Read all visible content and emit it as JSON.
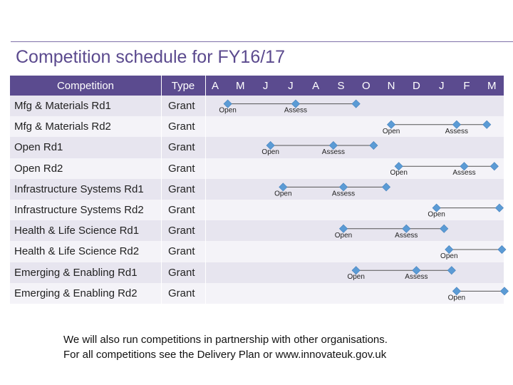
{
  "title": "Competition schedule for FY16/17",
  "header": {
    "competition": "Competition",
    "type": "Type",
    "months": [
      "A",
      "M",
      "J",
      "J",
      "A",
      "S",
      "O",
      "N",
      "D",
      "J",
      "F",
      "M"
    ]
  },
  "rows": [
    {
      "name": "Mfg & Materials Rd1",
      "type": "Grant",
      "milestones": [
        {
          "label": "Open",
          "month": 1.5
        },
        {
          "label": "Assess",
          "month": 4.2
        },
        {
          "label": "",
          "month": 6.6
        }
      ]
    },
    {
      "name": "Mfg & Materials Rd2",
      "type": "Grant",
      "milestones": [
        {
          "label": "Open",
          "month": 8.0
        },
        {
          "label": "Assess",
          "month": 10.6
        },
        {
          "label": "",
          "month": 11.8
        }
      ]
    },
    {
      "name": "Open Rd1",
      "type": "Grant",
      "milestones": [
        {
          "label": "Open",
          "month": 3.2
        },
        {
          "label": "Assess",
          "month": 5.7
        },
        {
          "label": "",
          "month": 7.3
        }
      ]
    },
    {
      "name": "Open Rd2",
      "type": "Grant",
      "milestones": [
        {
          "label": "Open",
          "month": 8.3
        },
        {
          "label": "Assess",
          "month": 10.9
        },
        {
          "label": "",
          "month": 12.1
        }
      ]
    },
    {
      "name": "Infrastructure Systems Rd1",
      "type": "Grant",
      "milestones": [
        {
          "label": "Open",
          "month": 3.7
        },
        {
          "label": "Assess",
          "month": 6.1
        },
        {
          "label": "",
          "month": 7.8
        }
      ]
    },
    {
      "name": "Infrastructure Systems Rd2",
      "type": "Grant",
      "milestones": [
        {
          "label": "Open",
          "month": 9.8
        },
        {
          "label": "",
          "month": 12.3
        }
      ]
    },
    {
      "name": "Health & Life Science Rd1",
      "type": "Grant",
      "milestones": [
        {
          "label": "Open",
          "month": 6.1
        },
        {
          "label": "Assess",
          "month": 8.6
        },
        {
          "label": "",
          "month": 10.1
        }
      ]
    },
    {
      "name": "Health & Life Science Rd2",
      "type": "Grant",
      "milestones": [
        {
          "label": "Open",
          "month": 10.3
        },
        {
          "label": "",
          "month": 12.4
        }
      ]
    },
    {
      "name": "Emerging & Enabling Rd1",
      "type": "Grant",
      "milestones": [
        {
          "label": "Open",
          "month": 6.6
        },
        {
          "label": "Assess",
          "month": 9.0
        },
        {
          "label": "",
          "month": 10.4
        }
      ]
    },
    {
      "name": "Emerging & Enabling Rd2",
      "type": "Grant",
      "milestones": [
        {
          "label": "Open",
          "month": 10.6
        },
        {
          "label": "",
          "month": 12.5
        }
      ]
    }
  ],
  "colors": {
    "header_bg": "#5b4b8f",
    "row_alt": "#e7e5ef",
    "row_plain": "#f4f3f8",
    "milestone": "#5b9bd5",
    "title": "#5b4a8e"
  },
  "note": {
    "line1": "We will also run competitions in partnership with other organisations.",
    "line2": "For all competitions see the Delivery Plan or www.innovateuk.gov.uk"
  }
}
